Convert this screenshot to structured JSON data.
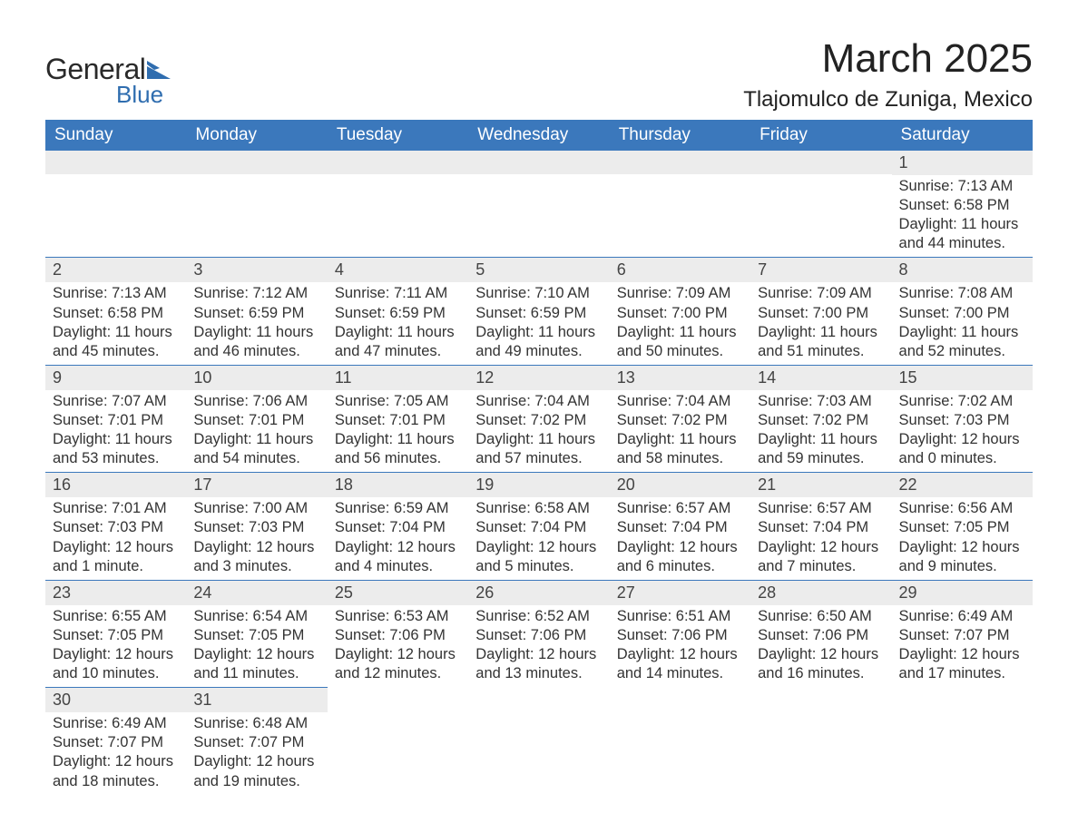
{
  "brand": {
    "word1": "General",
    "word2": "Blue",
    "text_color": "#2a2a2a",
    "accent_color": "#2F6DAF"
  },
  "title": {
    "month": "March 2025",
    "location": "Tlajomulco de Zuniga, Mexico",
    "month_fontsize": 44,
    "location_fontsize": 24
  },
  "colors": {
    "header_bg": "#3B78BC",
    "header_text": "#ffffff",
    "daynum_bg": "#ECECEC",
    "row_divider": "#3B78BC",
    "body_text": "#333333",
    "background": "#ffffff"
  },
  "calendar": {
    "day_headers": [
      "Sunday",
      "Monday",
      "Tuesday",
      "Wednesday",
      "Thursday",
      "Friday",
      "Saturday"
    ],
    "weeks": [
      [
        {
          "num": "",
          "sunrise": "",
          "sunset": "",
          "daylight": ""
        },
        {
          "num": "",
          "sunrise": "",
          "sunset": "",
          "daylight": ""
        },
        {
          "num": "",
          "sunrise": "",
          "sunset": "",
          "daylight": ""
        },
        {
          "num": "",
          "sunrise": "",
          "sunset": "",
          "daylight": ""
        },
        {
          "num": "",
          "sunrise": "",
          "sunset": "",
          "daylight": ""
        },
        {
          "num": "",
          "sunrise": "",
          "sunset": "",
          "daylight": ""
        },
        {
          "num": "1",
          "sunrise": "Sunrise: 7:13 AM",
          "sunset": "Sunset: 6:58 PM",
          "daylight": "Daylight: 11 hours and 44 minutes."
        }
      ],
      [
        {
          "num": "2",
          "sunrise": "Sunrise: 7:13 AM",
          "sunset": "Sunset: 6:58 PM",
          "daylight": "Daylight: 11 hours and 45 minutes."
        },
        {
          "num": "3",
          "sunrise": "Sunrise: 7:12 AM",
          "sunset": "Sunset: 6:59 PM",
          "daylight": "Daylight: 11 hours and 46 minutes."
        },
        {
          "num": "4",
          "sunrise": "Sunrise: 7:11 AM",
          "sunset": "Sunset: 6:59 PM",
          "daylight": "Daylight: 11 hours and 47 minutes."
        },
        {
          "num": "5",
          "sunrise": "Sunrise: 7:10 AM",
          "sunset": "Sunset: 6:59 PM",
          "daylight": "Daylight: 11 hours and 49 minutes."
        },
        {
          "num": "6",
          "sunrise": "Sunrise: 7:09 AM",
          "sunset": "Sunset: 7:00 PM",
          "daylight": "Daylight: 11 hours and 50 minutes."
        },
        {
          "num": "7",
          "sunrise": "Sunrise: 7:09 AM",
          "sunset": "Sunset: 7:00 PM",
          "daylight": "Daylight: 11 hours and 51 minutes."
        },
        {
          "num": "8",
          "sunrise": "Sunrise: 7:08 AM",
          "sunset": "Sunset: 7:00 PM",
          "daylight": "Daylight: 11 hours and 52 minutes."
        }
      ],
      [
        {
          "num": "9",
          "sunrise": "Sunrise: 7:07 AM",
          "sunset": "Sunset: 7:01 PM",
          "daylight": "Daylight: 11 hours and 53 minutes."
        },
        {
          "num": "10",
          "sunrise": "Sunrise: 7:06 AM",
          "sunset": "Sunset: 7:01 PM",
          "daylight": "Daylight: 11 hours and 54 minutes."
        },
        {
          "num": "11",
          "sunrise": "Sunrise: 7:05 AM",
          "sunset": "Sunset: 7:01 PM",
          "daylight": "Daylight: 11 hours and 56 minutes."
        },
        {
          "num": "12",
          "sunrise": "Sunrise: 7:04 AM",
          "sunset": "Sunset: 7:02 PM",
          "daylight": "Daylight: 11 hours and 57 minutes."
        },
        {
          "num": "13",
          "sunrise": "Sunrise: 7:04 AM",
          "sunset": "Sunset: 7:02 PM",
          "daylight": "Daylight: 11 hours and 58 minutes."
        },
        {
          "num": "14",
          "sunrise": "Sunrise: 7:03 AM",
          "sunset": "Sunset: 7:02 PM",
          "daylight": "Daylight: 11 hours and 59 minutes."
        },
        {
          "num": "15",
          "sunrise": "Sunrise: 7:02 AM",
          "sunset": "Sunset: 7:03 PM",
          "daylight": "Daylight: 12 hours and 0 minutes."
        }
      ],
      [
        {
          "num": "16",
          "sunrise": "Sunrise: 7:01 AM",
          "sunset": "Sunset: 7:03 PM",
          "daylight": "Daylight: 12 hours and 1 minute."
        },
        {
          "num": "17",
          "sunrise": "Sunrise: 7:00 AM",
          "sunset": "Sunset: 7:03 PM",
          "daylight": "Daylight: 12 hours and 3 minutes."
        },
        {
          "num": "18",
          "sunrise": "Sunrise: 6:59 AM",
          "sunset": "Sunset: 7:04 PM",
          "daylight": "Daylight: 12 hours and 4 minutes."
        },
        {
          "num": "19",
          "sunrise": "Sunrise: 6:58 AM",
          "sunset": "Sunset: 7:04 PM",
          "daylight": "Daylight: 12 hours and 5 minutes."
        },
        {
          "num": "20",
          "sunrise": "Sunrise: 6:57 AM",
          "sunset": "Sunset: 7:04 PM",
          "daylight": "Daylight: 12 hours and 6 minutes."
        },
        {
          "num": "21",
          "sunrise": "Sunrise: 6:57 AM",
          "sunset": "Sunset: 7:04 PM",
          "daylight": "Daylight: 12 hours and 7 minutes."
        },
        {
          "num": "22",
          "sunrise": "Sunrise: 6:56 AM",
          "sunset": "Sunset: 7:05 PM",
          "daylight": "Daylight: 12 hours and 9 minutes."
        }
      ],
      [
        {
          "num": "23",
          "sunrise": "Sunrise: 6:55 AM",
          "sunset": "Sunset: 7:05 PM",
          "daylight": "Daylight: 12 hours and 10 minutes."
        },
        {
          "num": "24",
          "sunrise": "Sunrise: 6:54 AM",
          "sunset": "Sunset: 7:05 PM",
          "daylight": "Daylight: 12 hours and 11 minutes."
        },
        {
          "num": "25",
          "sunrise": "Sunrise: 6:53 AM",
          "sunset": "Sunset: 7:06 PM",
          "daylight": "Daylight: 12 hours and 12 minutes."
        },
        {
          "num": "26",
          "sunrise": "Sunrise: 6:52 AM",
          "sunset": "Sunset: 7:06 PM",
          "daylight": "Daylight: 12 hours and 13 minutes."
        },
        {
          "num": "27",
          "sunrise": "Sunrise: 6:51 AM",
          "sunset": "Sunset: 7:06 PM",
          "daylight": "Daylight: 12 hours and 14 minutes."
        },
        {
          "num": "28",
          "sunrise": "Sunrise: 6:50 AM",
          "sunset": "Sunset: 7:06 PM",
          "daylight": "Daylight: 12 hours and 16 minutes."
        },
        {
          "num": "29",
          "sunrise": "Sunrise: 6:49 AM",
          "sunset": "Sunset: 7:07 PM",
          "daylight": "Daylight: 12 hours and 17 minutes."
        }
      ],
      [
        {
          "num": "30",
          "sunrise": "Sunrise: 6:49 AM",
          "sunset": "Sunset: 7:07 PM",
          "daylight": "Daylight: 12 hours and 18 minutes."
        },
        {
          "num": "31",
          "sunrise": "Sunrise: 6:48 AM",
          "sunset": "Sunset: 7:07 PM",
          "daylight": "Daylight: 12 hours and 19 minutes."
        },
        {
          "num": "",
          "sunrise": "",
          "sunset": "",
          "daylight": ""
        },
        {
          "num": "",
          "sunrise": "",
          "sunset": "",
          "daylight": ""
        },
        {
          "num": "",
          "sunrise": "",
          "sunset": "",
          "daylight": ""
        },
        {
          "num": "",
          "sunrise": "",
          "sunset": "",
          "daylight": ""
        },
        {
          "num": "",
          "sunrise": "",
          "sunset": "",
          "daylight": ""
        }
      ]
    ]
  }
}
